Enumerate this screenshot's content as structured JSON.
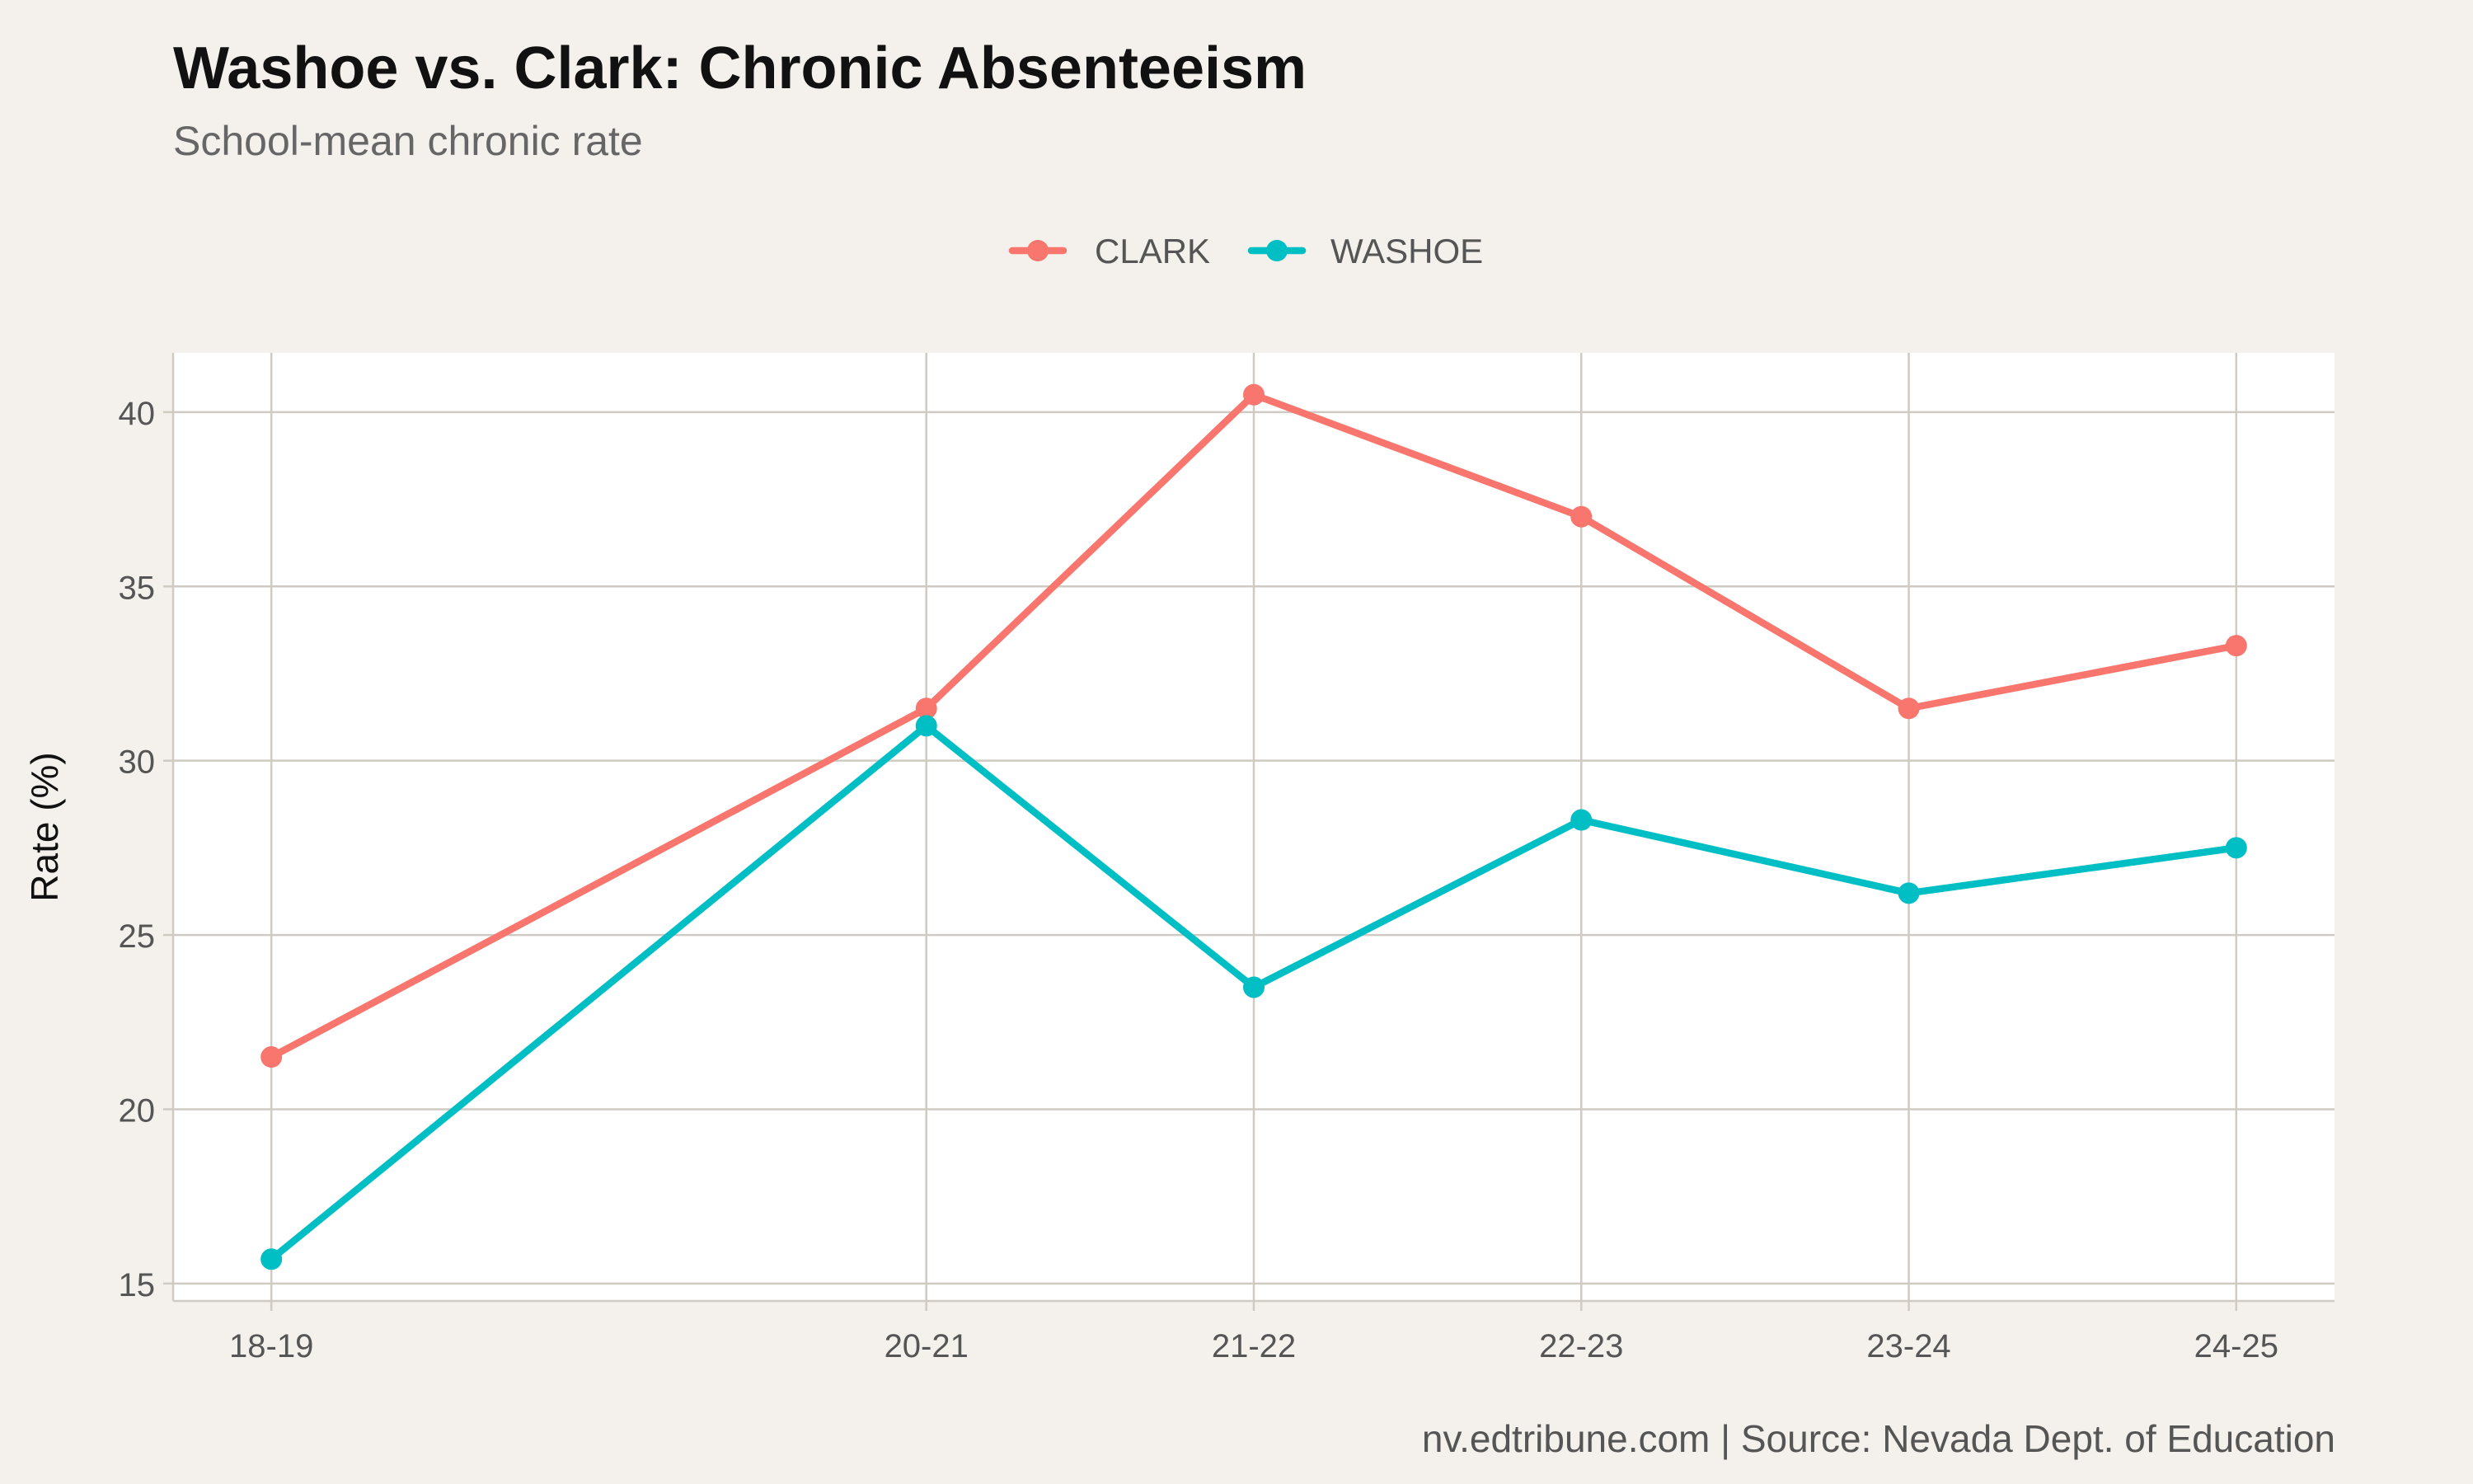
{
  "chart_data": {
    "type": "line",
    "title": "Washoe vs. Clark: Chronic Absenteeism",
    "subtitle": "School-mean chronic rate",
    "caption": "nv.edtribune.com | Source: Nevada Dept. of Education",
    "xlabel": "",
    "ylabel": "Rate (%)",
    "ylim": [
      14.5,
      41.7
    ],
    "yticks": [
      15,
      20,
      25,
      30,
      35,
      40
    ],
    "x_positions": [
      2019,
      2021,
      2022,
      2023,
      2024,
      2025
    ],
    "xlim": [
      2018.7,
      2025.3
    ],
    "categories": [
      "18-19",
      "20-21",
      "21-22",
      "22-23",
      "23-24",
      "24-25"
    ],
    "grid": true,
    "legend_position": "top",
    "series": [
      {
        "name": "CLARK",
        "color": "#f8766d",
        "values": [
          21.5,
          31.5,
          40.5,
          37.0,
          31.5,
          33.3
        ]
      },
      {
        "name": "WASHOE",
        "color": "#00bfc4",
        "values": [
          15.7,
          31.0,
          23.5,
          28.3,
          26.2,
          27.5
        ]
      }
    ]
  }
}
